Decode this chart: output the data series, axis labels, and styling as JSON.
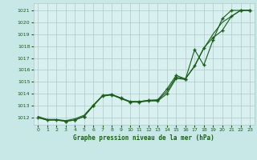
{
  "background_color": "#c8e8e8",
  "plot_bg_color": "#d8f0f0",
  "line_color": "#1a5c1a",
  "grid_color": "#b0c8c8",
  "title": "Graphe pression niveau de la mer (hPa)",
  "xlim": [
    -0.5,
    23.5
  ],
  "ylim": [
    1011.4,
    1021.6
  ],
  "yticks": [
    1012,
    1013,
    1014,
    1015,
    1016,
    1017,
    1018,
    1019,
    1020,
    1021
  ],
  "xticks": [
    0,
    1,
    2,
    3,
    4,
    5,
    6,
    7,
    8,
    9,
    10,
    11,
    12,
    13,
    14,
    15,
    16,
    17,
    18,
    19,
    20,
    21,
    22,
    23
  ],
  "line1_x": [
    0,
    1,
    2,
    3,
    4,
    5,
    6,
    7,
    8,
    9,
    10,
    11,
    12,
    13,
    14,
    15,
    16,
    17,
    18,
    19,
    20,
    21,
    22,
    23
  ],
  "line1_y": [
    1012.0,
    1011.8,
    1011.8,
    1011.7,
    1011.8,
    1012.1,
    1013.0,
    1013.8,
    1013.9,
    1013.6,
    1013.3,
    1013.3,
    1013.4,
    1013.4,
    1014.0,
    1015.3,
    1015.2,
    1017.7,
    1016.4,
    1018.5,
    1020.3,
    1021.0,
    1021.0,
    1021.0
  ],
  "line2_x": [
    0,
    1,
    2,
    3,
    4,
    5,
    6,
    7,
    8,
    9,
    10,
    11,
    12,
    13,
    14,
    15,
    16,
    17,
    18,
    19,
    20,
    21,
    22,
    23
  ],
  "line2_y": [
    1012.1,
    1011.85,
    1011.85,
    1011.75,
    1011.9,
    1012.2,
    1013.05,
    1013.85,
    1013.95,
    1013.65,
    1013.35,
    1013.35,
    1013.45,
    1013.45,
    1014.2,
    1015.4,
    1015.25,
    1016.3,
    1017.8,
    1019.0,
    1020.0,
    1020.5,
    1021.0,
    1021.0
  ],
  "line3_x": [
    0,
    1,
    2,
    3,
    4,
    5,
    6,
    7,
    8,
    9,
    10,
    11,
    12,
    13,
    14,
    15,
    16,
    17,
    18,
    19,
    20,
    21,
    22,
    23
  ],
  "line3_y": [
    1012.0,
    1011.8,
    1011.8,
    1011.7,
    1011.8,
    1012.1,
    1013.0,
    1013.85,
    1013.95,
    1013.65,
    1013.35,
    1013.35,
    1013.45,
    1013.5,
    1014.4,
    1015.55,
    1015.25,
    1016.35,
    1017.85,
    1018.7,
    1019.3,
    1020.5,
    1021.0,
    1021.0
  ],
  "markers1_x": [
    0,
    1,
    2,
    3,
    4,
    5,
    6,
    7,
    8,
    9,
    10,
    11,
    12,
    13,
    14,
    15,
    16,
    17,
    18,
    19,
    20,
    21,
    22,
    23
  ],
  "markers1_y": [
    1012.0,
    1011.8,
    1011.8,
    1011.7,
    1011.8,
    1012.1,
    1013.0,
    1013.8,
    1013.9,
    1013.6,
    1013.3,
    1013.3,
    1013.4,
    1013.4,
    1014.0,
    1015.3,
    1015.2,
    1017.7,
    1016.4,
    1018.5,
    1020.3,
    1021.0,
    1021.0,
    1021.0
  ],
  "markers2_x": [
    3,
    4,
    5,
    6,
    7,
    8,
    9,
    10,
    11,
    12,
    13,
    14,
    15,
    16,
    17,
    18,
    19,
    20,
    21,
    22,
    23
  ],
  "markers2_y": [
    1011.7,
    1011.8,
    1012.1,
    1013.0,
    1013.85,
    1013.95,
    1013.65,
    1013.35,
    1013.35,
    1013.45,
    1013.5,
    1014.4,
    1015.55,
    1015.25,
    1016.35,
    1017.85,
    1018.7,
    1019.3,
    1020.5,
    1021.0,
    1021.0
  ]
}
